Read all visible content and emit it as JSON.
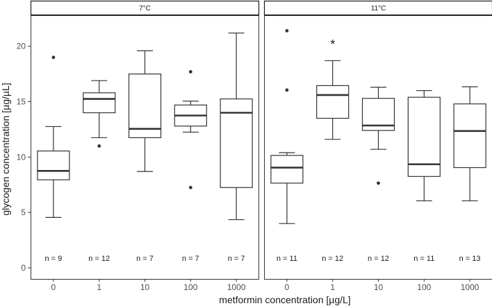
{
  "chart_data": {
    "type": "boxplot",
    "xlabel": "metformin concentration [µg/L]",
    "ylabel": "glycogen concentration [µg/µL]",
    "ylim": [
      -1,
      22.8
    ],
    "yticks": [
      0,
      5,
      10,
      15,
      20
    ],
    "categories": [
      "0",
      "1",
      "10",
      "100",
      "1000"
    ],
    "grid": false,
    "panels": [
      {
        "strip": "7°C",
        "boxes": [
          {
            "category": "0",
            "n_label": "n = 9",
            "whisker_low": 4.55,
            "q1": 7.95,
            "median": 8.75,
            "q3": 10.55,
            "whisker_high": 12.75,
            "outliers": [
              19.0
            ]
          },
          {
            "category": "1",
            "n_label": "n = 12",
            "whisker_low": 11.75,
            "q1": 14.0,
            "median": 15.25,
            "q3": 15.8,
            "whisker_high": 16.9,
            "outliers": [
              11.0
            ]
          },
          {
            "category": "10",
            "n_label": "n = 7",
            "whisker_low": 8.7,
            "q1": 11.75,
            "median": 12.55,
            "q3": 17.5,
            "whisker_high": 19.6,
            "outliers": []
          },
          {
            "category": "100",
            "n_label": "n = 7",
            "whisker_low": 12.25,
            "q1": 12.8,
            "median": 13.75,
            "q3": 14.7,
            "whisker_high": 15.05,
            "outliers": [
              17.7,
              7.25
            ]
          },
          {
            "category": "1000",
            "n_label": "n = 7",
            "whisker_low": 4.35,
            "q1": 7.25,
            "median": 14.0,
            "q3": 15.25,
            "whisker_high": 21.2,
            "outliers": []
          }
        ],
        "annotations": []
      },
      {
        "strip": "11°C",
        "boxes": [
          {
            "category": "0",
            "n_label": "n = 11",
            "whisker_low": 4.0,
            "q1": 7.65,
            "median": 9.05,
            "q3": 10.15,
            "whisker_high": 10.4,
            "outliers": [
              21.4,
              16.05
            ]
          },
          {
            "category": "1",
            "n_label": "n = 12",
            "whisker_low": 11.6,
            "q1": 13.5,
            "median": 15.6,
            "q3": 16.45,
            "whisker_high": 18.7,
            "outliers": []
          },
          {
            "category": "10",
            "n_label": "n = 12",
            "whisker_low": 10.7,
            "q1": 12.4,
            "median": 12.85,
            "q3": 15.3,
            "whisker_high": 16.3,
            "outliers": [
              7.65
            ]
          },
          {
            "category": "100",
            "n_label": "n = 11",
            "whisker_low": 6.05,
            "q1": 8.25,
            "median": 9.35,
            "q3": 15.4,
            "whisker_high": 16.0,
            "outliers": []
          },
          {
            "category": "1000",
            "n_label": "n = 13",
            "whisker_low": 6.05,
            "q1": 9.05,
            "median": 12.35,
            "q3": 14.8,
            "whisker_high": 16.35,
            "outliers": []
          }
        ],
        "annotations": [
          {
            "category": "1",
            "y": 20.3,
            "text": "*"
          }
        ]
      }
    ]
  }
}
